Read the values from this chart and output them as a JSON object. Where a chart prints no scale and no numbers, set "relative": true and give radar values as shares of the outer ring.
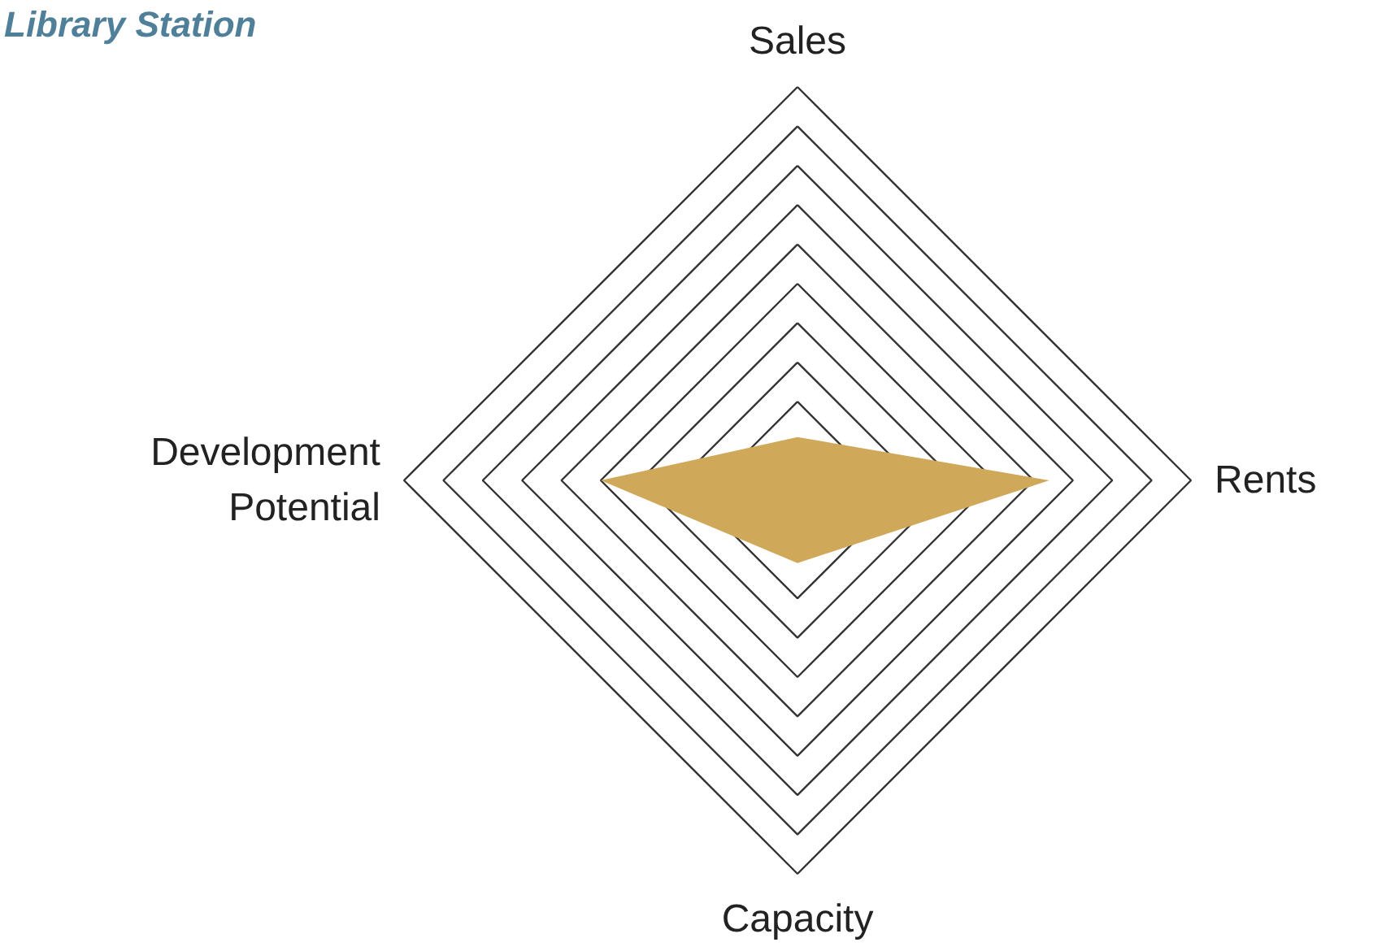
{
  "chart_data": {
    "type": "radar",
    "title": "Library Station",
    "relative": true,
    "categories": [
      "Sales",
      "Rents",
      "Capacity",
      "Development Potential"
    ],
    "grid": true,
    "series": [
      {
        "color": "#cfa85a",
        "values": [
          0.11,
          0.64,
          0.21,
          0.5
        ]
      }
    ]
  }
}
